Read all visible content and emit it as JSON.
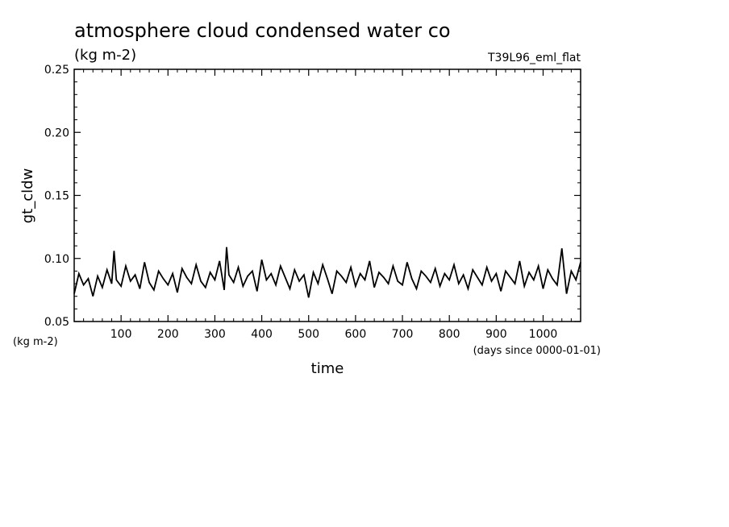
{
  "chart_data": {
    "type": "line",
    "title": "atmosphere cloud condensed water co",
    "subtitle": "(kg m-2)",
    "run_label": "T39L96_eml_flat",
    "ylabel": "gt_cldw",
    "yunit": "(kg m-2)",
    "xlabel": "time",
    "xunit": "(days since 0000-01-01)",
    "xlim": [
      0,
      1080
    ],
    "ylim": [
      0.05,
      0.25
    ],
    "xticks": [
      100,
      200,
      300,
      400,
      500,
      600,
      700,
      800,
      900,
      1000
    ],
    "yticks": [
      "0.05",
      "0.10",
      "0.15",
      "0.20",
      "0.25"
    ],
    "series": [
      {
        "x": [
          0,
          10,
          20,
          30,
          40,
          50,
          60,
          70,
          80,
          85,
          90,
          100,
          110,
          120,
          130,
          140,
          150,
          160,
          170,
          180,
          190,
          200,
          210,
          220,
          230,
          240,
          250,
          260,
          270,
          280,
          290,
          300,
          310,
          320,
          325,
          330,
          340,
          350,
          360,
          370,
          380,
          390,
          400,
          410,
          420,
          430,
          440,
          450,
          460,
          470,
          480,
          490,
          500,
          510,
          520,
          530,
          540,
          550,
          560,
          570,
          580,
          590,
          600,
          610,
          620,
          630,
          640,
          650,
          660,
          670,
          680,
          690,
          700,
          710,
          720,
          730,
          740,
          750,
          760,
          770,
          780,
          790,
          800,
          810,
          820,
          830,
          840,
          850,
          860,
          870,
          880,
          890,
          900,
          910,
          920,
          930,
          940,
          950,
          960,
          970,
          980,
          990,
          1000,
          1010,
          1020,
          1030,
          1040,
          1050,
          1060,
          1070,
          1080
        ],
        "y": [
          0.072,
          0.088,
          0.079,
          0.084,
          0.07,
          0.086,
          0.077,
          0.091,
          0.08,
          0.106,
          0.083,
          0.078,
          0.094,
          0.082,
          0.087,
          0.076,
          0.097,
          0.081,
          0.075,
          0.09,
          0.084,
          0.079,
          0.088,
          0.073,
          0.092,
          0.085,
          0.08,
          0.095,
          0.082,
          0.077,
          0.089,
          0.083,
          0.098,
          0.075,
          0.109,
          0.087,
          0.081,
          0.093,
          0.078,
          0.086,
          0.09,
          0.074,
          0.099,
          0.083,
          0.088,
          0.079,
          0.094,
          0.085,
          0.076,
          0.091,
          0.082,
          0.087,
          0.069,
          0.089,
          0.08,
          0.095,
          0.084,
          0.072,
          0.09,
          0.086,
          0.081,
          0.093,
          0.078,
          0.088,
          0.083,
          0.098,
          0.077,
          0.089,
          0.085,
          0.08,
          0.094,
          0.082,
          0.079,
          0.097,
          0.084,
          0.076,
          0.09,
          0.086,
          0.081,
          0.092,
          0.078,
          0.088,
          0.083,
          0.095,
          0.08,
          0.087,
          0.076,
          0.091,
          0.085,
          0.079,
          0.093,
          0.082,
          0.088,
          0.074,
          0.09,
          0.085,
          0.08,
          0.098,
          0.078,
          0.089,
          0.083,
          0.094,
          0.076,
          0.091,
          0.084,
          0.079,
          0.108,
          0.072,
          0.09,
          0.083,
          0.097
        ]
      }
    ],
    "grid": false,
    "color": "#000000"
  }
}
